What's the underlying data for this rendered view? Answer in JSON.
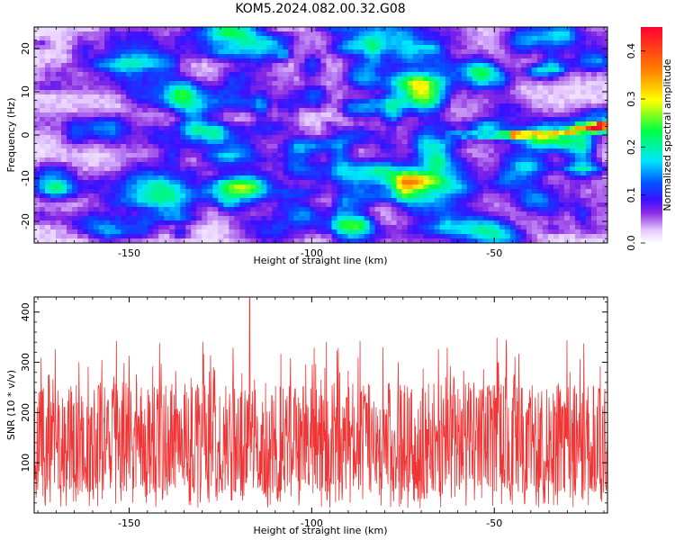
{
  "title": "KOM5.2024.082.00.32.G08",
  "chart_data": [
    {
      "type": "heatmap",
      "xlabel": "Height of straight line (km)",
      "ylabel": "Frequency (Hz)",
      "xlim": [
        -176,
        -19
      ],
      "ylim": [
        -25,
        25
      ],
      "xticks": [
        -150,
        -100,
        -50
      ],
      "yticks": [
        -20,
        -10,
        0,
        10,
        20
      ],
      "colorbar": {
        "label": "Normalized spectral amplitude",
        "range": [
          0.0,
          0.45
        ],
        "ticks": [
          0.0,
          0.1,
          0.2,
          0.3,
          0.4
        ],
        "colormap": "white-purple-blue-cyan-green-yellow-red"
      },
      "features": {
        "background_amplitude_range": [
          0.0,
          0.1
        ],
        "signal_track": {
          "x": [
            -60,
            -50,
            -42,
            -36,
            -30,
            -25,
            -21
          ],
          "y": [
            0,
            0,
            0,
            0,
            0.5,
            1.5,
            2
          ],
          "amplitude": [
            0.15,
            0.2,
            0.35,
            0.3,
            0.3,
            0.35,
            0.45
          ]
        }
      }
    },
    {
      "type": "line",
      "xlabel": "Height of straight line (km)",
      "ylabel": "SNR (10 * v/v)",
      "xlim": [
        -176,
        -19
      ],
      "ylim": [
        0,
        430
      ],
      "xticks": [
        -150,
        -100,
        -50
      ],
      "yticks": [
        100,
        200,
        300,
        400
      ],
      "color": "#ef3535",
      "series_summary": {
        "typical_range": [
          40,
          260
        ],
        "mean": 130,
        "max": 428,
        "max_at_x": -117
      }
    }
  ]
}
